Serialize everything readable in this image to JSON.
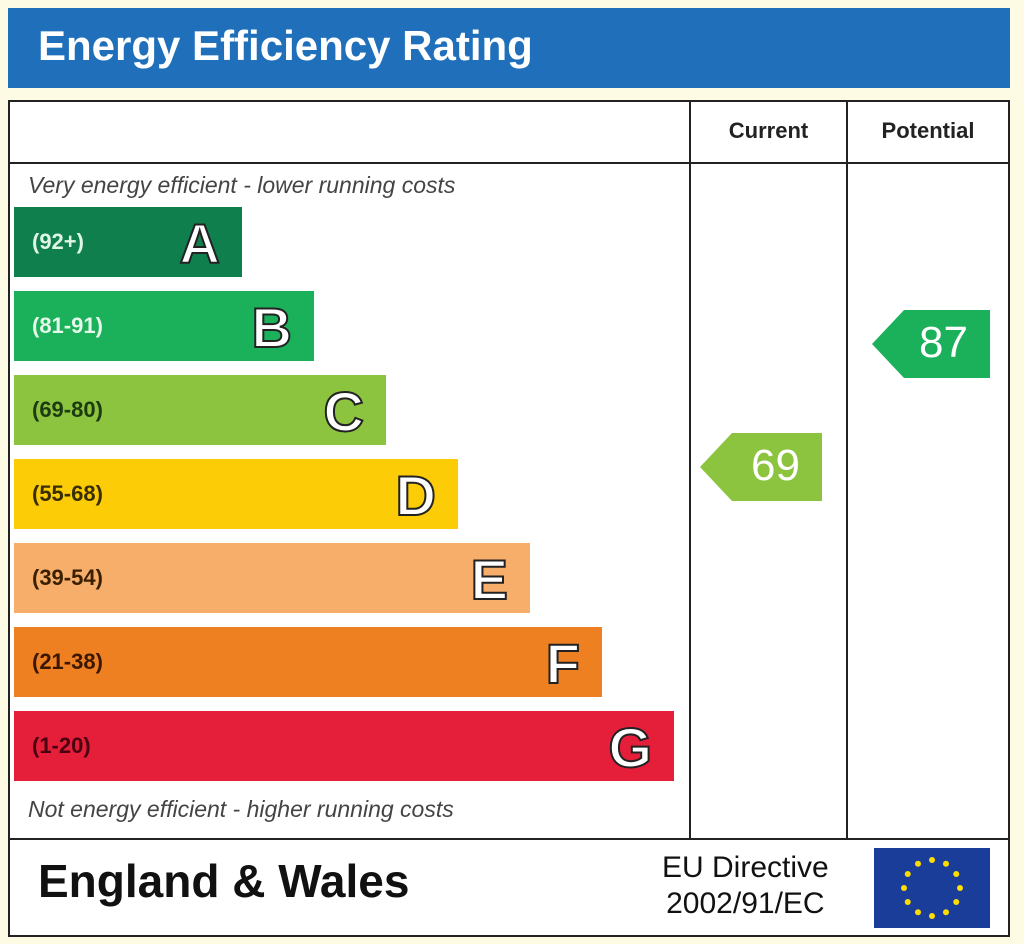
{
  "title": "Energy Efficiency Rating",
  "columns": {
    "current": "Current",
    "potential": "Potential"
  },
  "notes": {
    "top": "Very energy efficient - lower running costs",
    "bottom": "Not energy efficient - higher running costs"
  },
  "footer": {
    "country": "England & Wales",
    "directive_line1": "EU Directive",
    "directive_line2": "2002/91/EC",
    "flag_icon": "eu-flag-icon"
  },
  "chart_data": {
    "type": "bar",
    "title": "Energy Efficiency Rating",
    "bands": [
      {
        "letter": "A",
        "range": "(92+)",
        "min": 92,
        "max": 100,
        "color": "#0f7f4e",
        "text_color": "#dff5e6"
      },
      {
        "letter": "B",
        "range": "(81-91)",
        "min": 81,
        "max": 91,
        "color": "#1bb05a",
        "text_color": "#e6f8ea"
      },
      {
        "letter": "C",
        "range": "(69-80)",
        "min": 69,
        "max": 80,
        "color": "#8cc43f",
        "text_color": "#1d3a10"
      },
      {
        "letter": "D",
        "range": "(55-68)",
        "min": 55,
        "max": 68,
        "color": "#fccd06",
        "text_color": "#3a2e00"
      },
      {
        "letter": "E",
        "range": "(39-54)",
        "min": 39,
        "max": 54,
        "color": "#f7ae6a",
        "text_color": "#3a2000"
      },
      {
        "letter": "F",
        "range": "(21-38)",
        "min": 21,
        "max": 38,
        "color": "#ef8022",
        "text_color": "#3a1800"
      },
      {
        "letter": "G",
        "range": "(1-20)",
        "min": 1,
        "max": 20,
        "color": "#e51e3a",
        "text_color": "#4a0010"
      }
    ],
    "current": {
      "value": 69,
      "color": "#8cc43f"
    },
    "potential": {
      "value": 87,
      "color": "#1bb05a"
    }
  }
}
